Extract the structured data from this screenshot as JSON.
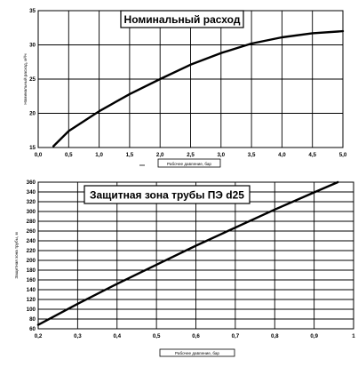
{
  "chart_data": [
    {
      "type": "line",
      "title": "Номинальный расход",
      "xlabel": "Рабочее давление, бар",
      "ylabel": "Номинальный расход, м³/ч",
      "xlim": [
        0,
        5
      ],
      "ylim": [
        15,
        35
      ],
      "xticks": [
        "0,0",
        "0,5",
        "1,0",
        "1,5",
        "2,0",
        "2,5",
        "3,0",
        "3,5",
        "4,0",
        "4,5",
        "5,0"
      ],
      "yticks": [
        "15",
        "20",
        "25",
        "30",
        "35"
      ],
      "grid": true,
      "series": [
        {
          "x": [
            0.25,
            0.5,
            1.0,
            1.5,
            2.0,
            2.5,
            3.0,
            3.5,
            4.0,
            4.5,
            5.0
          ],
          "y": [
            15.2,
            17.4,
            20.3,
            22.8,
            25.0,
            27.1,
            28.8,
            30.2,
            31.1,
            31.7,
            32.0
          ]
        }
      ]
    },
    {
      "type": "line",
      "title": "Защитная зона трубы ПЭ d25",
      "xlabel": "Рабочее давление, бар",
      "ylabel": "Защитная зона трубы, м",
      "xlim": [
        0.2,
        1.0
      ],
      "ylim": [
        60,
        360
      ],
      "xticks": [
        "0,2",
        "0,3",
        "0,4",
        "0,5",
        "0,6",
        "0,7",
        "0,8",
        "0,9",
        "1"
      ],
      "yticks": [
        "60",
        "80",
        "100",
        "120",
        "140",
        "160",
        "180",
        "200",
        "220",
        "240",
        "260",
        "280",
        "300",
        "320",
        "340",
        "360"
      ],
      "grid": true,
      "series": [
        {
          "x": [
            0.2,
            0.3,
            0.4,
            0.5,
            0.6,
            0.7,
            0.8,
            0.9,
            0.96
          ],
          "y": [
            68,
            111,
            152,
            191,
            230,
            267,
            304,
            339,
            360
          ]
        }
      ]
    }
  ]
}
